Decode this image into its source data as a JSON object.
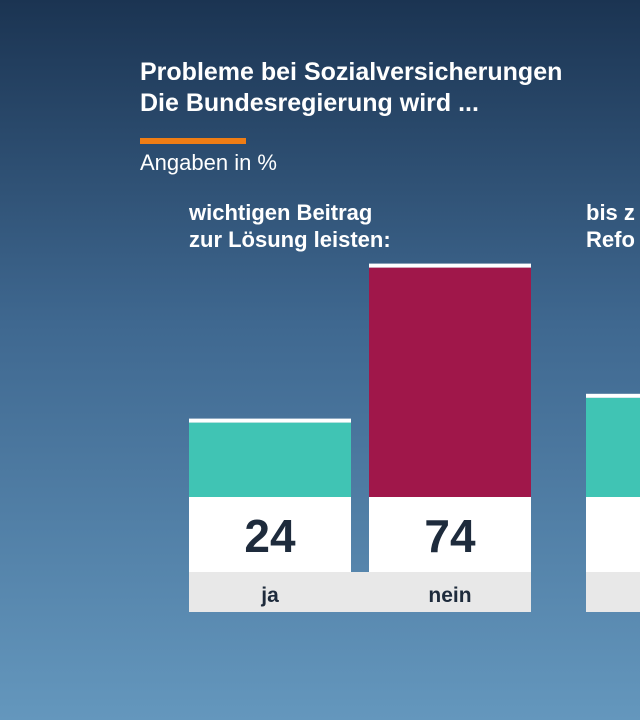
{
  "chart_data": {
    "type": "bar",
    "title": [
      "Probleme bei Sozialversicherungen",
      "Die Bundesregierung wird ..."
    ],
    "subtitle": "Angaben in %",
    "ylim": [
      0,
      80
    ],
    "groups": [
      {
        "title": [
          "wichtigen Beitrag",
          "zur Lösung leisten:"
        ],
        "categories": [
          "ja",
          "nein"
        ],
        "values": [
          24,
          74
        ],
        "colors": [
          "#40c4b4",
          "#a0174a"
        ]
      },
      {
        "title": [
          "bis z",
          "Refo"
        ],
        "categories": [
          null
        ],
        "values": [
          32
        ],
        "colors": [
          "#40c4b4"
        ]
      }
    ]
  }
}
